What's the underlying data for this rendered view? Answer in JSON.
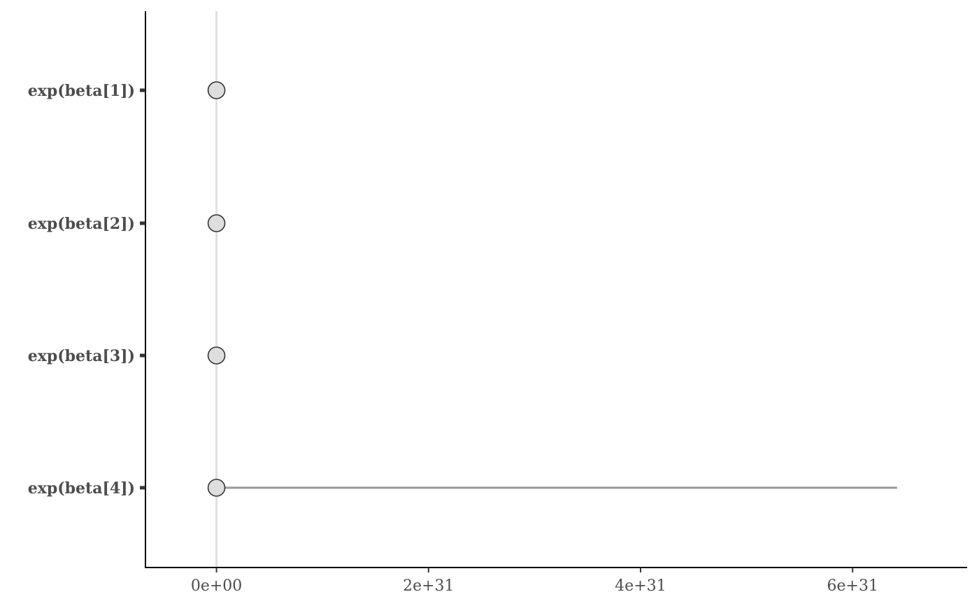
{
  "chart_data": {
    "type": "interval",
    "title": "",
    "xlabel": "",
    "ylabel": "",
    "xlim": [
      -6.7e+30,
      7.08e+31
    ],
    "x_ticks": [
      0,
      2e+31,
      4e+31,
      6e+31
    ],
    "x_tick_labels": [
      "0e+00",
      "2e+31",
      "4e+31",
      "6e+31"
    ],
    "reference_line": 0,
    "grid": false,
    "parameters": [
      {
        "label": "exp(beta[1])",
        "point": 0,
        "low": 0,
        "high": 0
      },
      {
        "label": "exp(beta[2])",
        "point": 0,
        "low": 0,
        "high": 0
      },
      {
        "label": "exp(beta[3])",
        "point": 0,
        "low": 0,
        "high": 0
      },
      {
        "label": "exp(beta[4])",
        "point": 0,
        "low": 0,
        "high": 6.42e+31
      }
    ],
    "colors": {
      "point_fill": "#dedede",
      "point_stroke": "#333333",
      "interval": "#999999",
      "reference_line": "#e0e0e0",
      "axis": "#000000",
      "text": "#4d4d4d"
    }
  }
}
